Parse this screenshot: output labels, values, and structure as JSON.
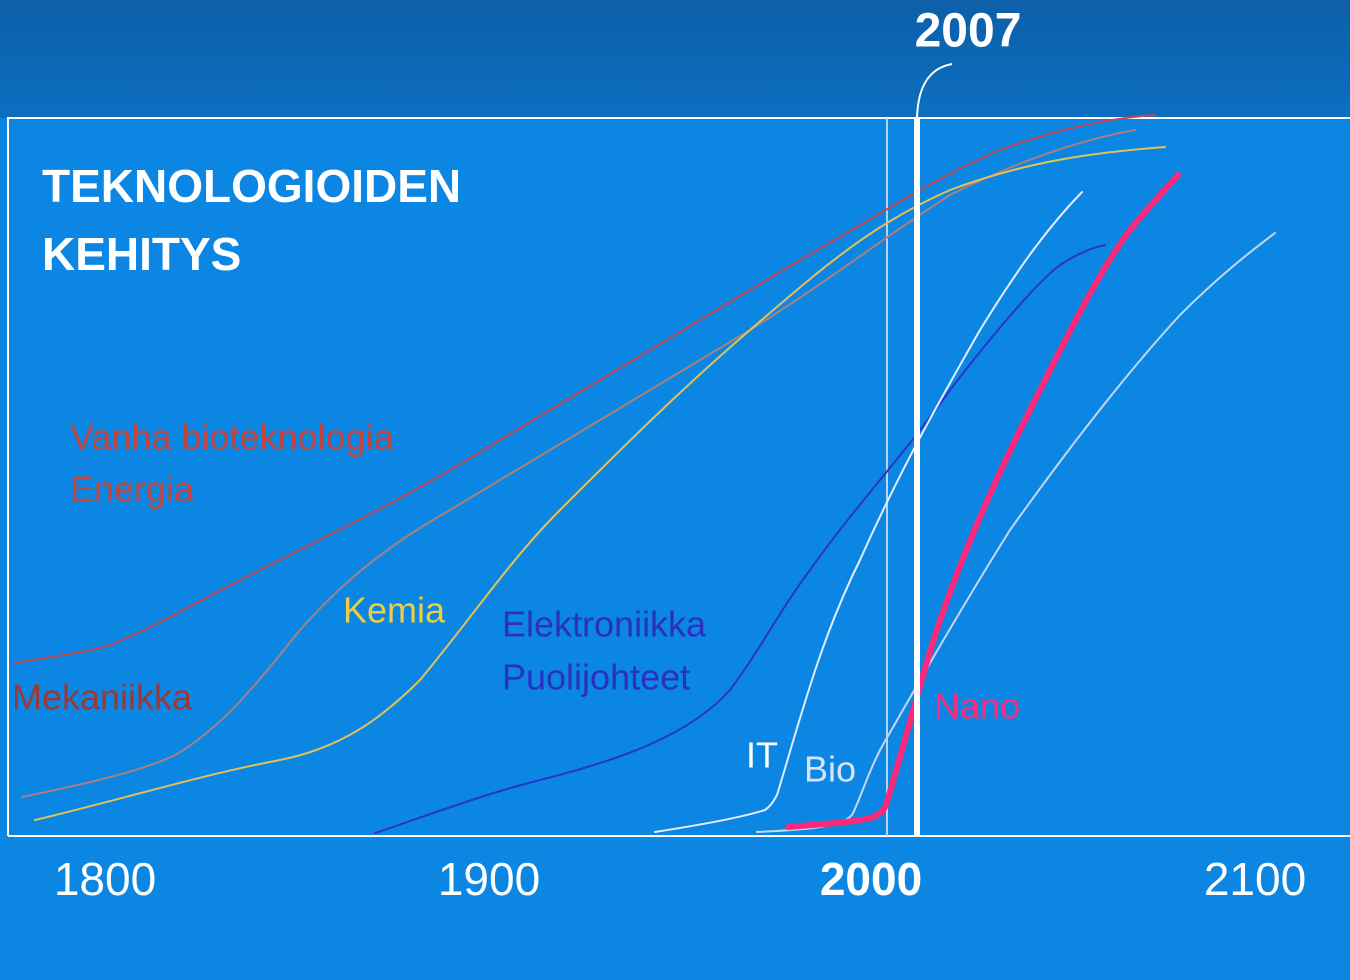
{
  "header": {
    "marker": "2007"
  },
  "title": {
    "lines": [
      "TEKNOLOGIOIDEN",
      "KEHITYS"
    ]
  },
  "curve_labels": [
    "Vanha bioteknologia",
    "Energia",
    "Mekaniikka",
    "Kemia",
    "Elektroniikka",
    "Puolijohteet",
    "IT",
    "Bio",
    "Nano"
  ],
  "axis": {
    "years": [
      "1800",
      "1900",
      "2000",
      "2100"
    ]
  }
}
